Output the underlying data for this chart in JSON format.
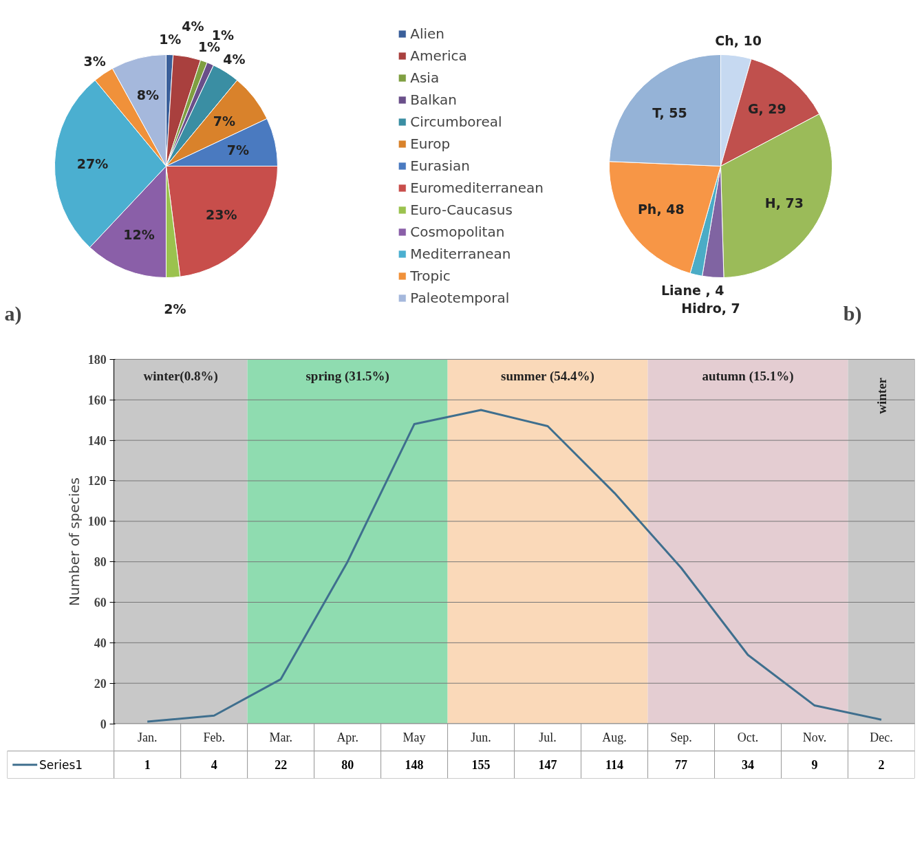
{
  "chart_data": [
    {
      "type": "pie",
      "categories": [
        "Alien",
        "America",
        "Asia",
        "Balkan",
        "Circumboreal",
        "Europ",
        "Eurasian",
        "Euromediterranean",
        "Euro-Caucasus",
        "Cosmopolitan",
        "Mediterranean",
        "Tropic",
        "Paleotemporal"
      ],
      "values": [
        1,
        4,
        1,
        1,
        4,
        7,
        7,
        23,
        2,
        12,
        27,
        3,
        8
      ],
      "colors": [
        "#3a5f9a",
        "#a9403e",
        "#7f9f41",
        "#6a4f8a",
        "#3a8ea3",
        "#d9822b",
        "#4a7ac0",
        "#c84e4b",
        "#9bc24e",
        "#8a5fa8",
        "#4bafd0",
        "#f0913a",
        "#a5b8dc"
      ],
      "value_labels": [
        "1%",
        "4%",
        "1%",
        "1%",
        "4%",
        "7%",
        "7%",
        "23%",
        "2%",
        "12%",
        "27%",
        "3%",
        "8%"
      ],
      "legend": "right",
      "annotations": [
        "a)"
      ]
    },
    {
      "type": "pie",
      "values": [
        10,
        29,
        73,
        7,
        4,
        48,
        55
      ],
      "colors": [
        "#c6d9f1",
        "#c0504d",
        "#9bbb59",
        "#8064a2",
        "#4bacc6",
        "#f79646",
        "#95b3d7"
      ],
      "value_labels": [
        "Ch, 10",
        "G, 29",
        "H, 73",
        "Hidro, 7",
        "Liane , 4",
        "Ph, 48",
        "T, 55"
      ],
      "annotations": [
        "b)"
      ]
    },
    {
      "type": "line",
      "categories": [
        "Jan.",
        "Feb.",
        "Mar.",
        "Apr.",
        "May",
        "Jun.",
        "Jul.",
        "Aug.",
        "Sep.",
        "Oct.",
        "Nov.",
        "Dec."
      ],
      "series": [
        {
          "name": "Series1",
          "color": "#3f6f8e",
          "values": [
            1,
            4,
            22,
            80,
            148,
            155,
            147,
            114,
            77,
            34,
            9,
            2
          ],
          "value_labels": [
            "1",
            "4",
            "22",
            "80",
            "148",
            "155",
            "147",
            "114",
            "77",
            "34",
            "9",
            "2"
          ]
        }
      ],
      "ylim": [
        0,
        180
      ],
      "yticks": [
        0,
        20,
        40,
        60,
        80,
        100,
        120,
        140,
        160,
        180
      ],
      "ylabel": "Number of species",
      "grid": "y",
      "bands": [
        {
          "axis": "x",
          "from": "Jan.",
          "to": "Feb.",
          "label": "winter(0.8%)",
          "color": "#c8c8c8"
        },
        {
          "axis": "x",
          "from": "Mar.",
          "to": "May",
          "label": "spring (31.5%)",
          "color": "#8fdcb0"
        },
        {
          "axis": "x",
          "from": "Jun.",
          "to": "Aug.",
          "label": "summer (54.4%)",
          "color": "#fad9b9"
        },
        {
          "axis": "x",
          "from": "Sep.",
          "to": "Nov.",
          "label": "autumn (15.1%)",
          "color": "#e4cdd2"
        },
        {
          "axis": "x",
          "from": "Dec.",
          "to": "Dec.",
          "label": "winter",
          "color": "#c8c8c8"
        }
      ],
      "legend": "bottom left"
    }
  ]
}
